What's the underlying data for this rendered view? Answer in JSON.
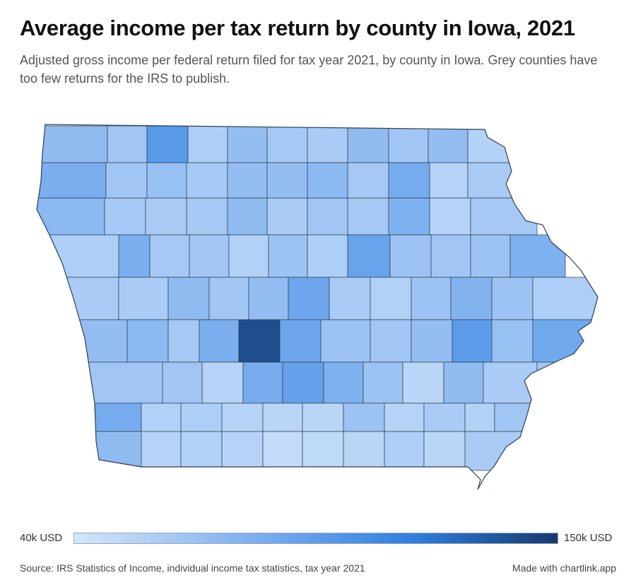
{
  "title": "Average income per tax return by county in Iowa, 2021",
  "subtitle": "Adjusted gross income per federal return filed for tax year 2021, by county in Iowa. Grey counties have too few returns for the IRS to publish.",
  "legend": {
    "min_label": "40k USD",
    "max_label": "150k USD",
    "min_color": "#d4e6fb",
    "max_color": "#17396b"
  },
  "source": "Source: IRS Statistics of Income, individual income tax statistics, tax year 2021",
  "credit": "Made with chartlink.app",
  "chart_data": {
    "type": "choropleth",
    "region": "Iowa counties",
    "value_unit": "USD",
    "scale_min": 40000,
    "scale_max": 150000,
    "missing_color": "#bdbdbd",
    "counties": [
      {
        "id": "r1c1",
        "value": 72000
      },
      {
        "id": "r1c2",
        "value": 64000
      },
      {
        "id": "r1c3",
        "value": 98000
      },
      {
        "id": "r1c4",
        "value": 58000
      },
      {
        "id": "r1c5",
        "value": 70000
      },
      {
        "id": "r1c6",
        "value": 62000
      },
      {
        "id": "r1c7",
        "value": 60000
      },
      {
        "id": "r1c8",
        "value": 72000
      },
      {
        "id": "r1c9",
        "value": 64000
      },
      {
        "id": "r1c10",
        "value": 70000
      },
      {
        "id": "r1c11",
        "value": 55000
      },
      {
        "id": "r2c1",
        "value": 82000
      },
      {
        "id": "r2c2",
        "value": 64000
      },
      {
        "id": "r2c3",
        "value": 68000
      },
      {
        "id": "r2c4",
        "value": 62000
      },
      {
        "id": "r2c5",
        "value": 70000
      },
      {
        "id": "r2c6",
        "value": 70000
      },
      {
        "id": "r2c7",
        "value": 74000
      },
      {
        "id": "r2c8",
        "value": 62000
      },
      {
        "id": "r2c9",
        "value": 84000
      },
      {
        "id": "r2c10",
        "value": 54000
      },
      {
        "id": "r2c11",
        "value": 60000
      },
      {
        "id": "r3c1",
        "value": 74000
      },
      {
        "id": "r3c2",
        "value": 62000
      },
      {
        "id": "r3c3",
        "value": 60000
      },
      {
        "id": "r3c4",
        "value": 62000
      },
      {
        "id": "r3c5",
        "value": 72000
      },
      {
        "id": "r3c6",
        "value": 60000
      },
      {
        "id": "r3c7",
        "value": 64000
      },
      {
        "id": "r3c8",
        "value": 62000
      },
      {
        "id": "r3c9",
        "value": 80000
      },
      {
        "id": "r3c10",
        "value": 54000
      },
      {
        "id": "r3c11",
        "value": 62000
      },
      {
        "id": "r4c1",
        "value": 58000
      },
      {
        "id": "r4c2",
        "value": 82000
      },
      {
        "id": "r4c3",
        "value": 62000
      },
      {
        "id": "r4c4",
        "value": 64000
      },
      {
        "id": "r4c5",
        "value": 56000
      },
      {
        "id": "r4c6",
        "value": 66000
      },
      {
        "id": "r4c7",
        "value": 58000
      },
      {
        "id": "r4c8",
        "value": 90000
      },
      {
        "id": "r4c9",
        "value": 66000
      },
      {
        "id": "r4c10",
        "value": 64000
      },
      {
        "id": "r4c11",
        "value": 66000
      },
      {
        "id": "r4c12",
        "value": 80000
      },
      {
        "id": "r5c1",
        "value": 60000
      },
      {
        "id": "r5c2",
        "value": 60000
      },
      {
        "id": "r5c3",
        "value": 72000
      },
      {
        "id": "r5c4",
        "value": 64000
      },
      {
        "id": "r5c5",
        "value": 70000
      },
      {
        "id": "r5c6",
        "value": 88000
      },
      {
        "id": "r5c7",
        "value": 60000
      },
      {
        "id": "r5c8",
        "value": 56000
      },
      {
        "id": "r5c9",
        "value": 66000
      },
      {
        "id": "r5c10",
        "value": 78000
      },
      {
        "id": "r5c11",
        "value": 66000
      },
      {
        "id": "r5c12",
        "value": 58000
      },
      {
        "id": "r6c1",
        "value": 70000
      },
      {
        "id": "r6c2",
        "value": 74000
      },
      {
        "id": "r6c3",
        "value": 62000
      },
      {
        "id": "r6c4",
        "value": 82000
      },
      {
        "id": "r6c5",
        "value": 140000
      },
      {
        "id": "r6c6",
        "value": 88000
      },
      {
        "id": "r6c7",
        "value": 66000
      },
      {
        "id": "r6c8",
        "value": 64000
      },
      {
        "id": "r6c9",
        "value": 70000
      },
      {
        "id": "r6c10",
        "value": 96000
      },
      {
        "id": "r6c11",
        "value": 68000
      },
      {
        "id": "r6c12",
        "value": 86000
      },
      {
        "id": "r7c1",
        "value": 64000
      },
      {
        "id": "r7c2",
        "value": 64000
      },
      {
        "id": "r7c3",
        "value": 54000
      },
      {
        "id": "r7c4",
        "value": 84000
      },
      {
        "id": "r7c5",
        "value": 92000
      },
      {
        "id": "r7c6",
        "value": 80000
      },
      {
        "id": "r7c7",
        "value": 66000
      },
      {
        "id": "r7c8",
        "value": 52000
      },
      {
        "id": "r7c9",
        "value": 72000
      },
      {
        "id": "r7c10",
        "value": 60000
      },
      {
        "id": "r7c11",
        "value": 62000
      },
      {
        "id": "r8c1",
        "value": 84000
      },
      {
        "id": "r8c2",
        "value": 56000
      },
      {
        "id": "r8c3",
        "value": 58000
      },
      {
        "id": "r8c4",
        "value": 54000
      },
      {
        "id": "r8c5",
        "value": 52000
      },
      {
        "id": "r8c6",
        "value": 52000
      },
      {
        "id": "r8c7",
        "value": 66000
      },
      {
        "id": "r8c8",
        "value": 54000
      },
      {
        "id": "r8c9",
        "value": 60000
      },
      {
        "id": "r8c10",
        "value": 56000
      },
      {
        "id": "r8c11",
        "value": 64000
      },
      {
        "id": "r9c1",
        "value": 72000
      },
      {
        "id": "r9c2",
        "value": 54000
      },
      {
        "id": "r9c3",
        "value": 56000
      },
      {
        "id": "r9c4",
        "value": 54000
      },
      {
        "id": "r9c5",
        "value": 48000
      },
      {
        "id": "r9c6",
        "value": 50000
      },
      {
        "id": "r9c7",
        "value": 52000
      },
      {
        "id": "r9c8",
        "value": 58000
      },
      {
        "id": "r9c9",
        "value": 52000
      },
      {
        "id": "r9c10",
        "value": 60000
      }
    ]
  }
}
